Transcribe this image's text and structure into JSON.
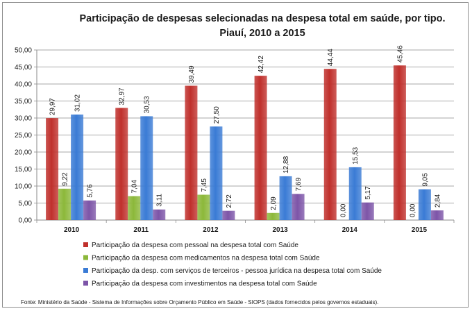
{
  "chart_data": {
    "type": "bar",
    "title": [
      "Participação de despesas selecionadas na despesa total em saúde, por tipo.",
      "Piauí, 2010 a 2015"
    ],
    "categories": [
      "2010",
      "2011",
      "2012",
      "2013",
      "2014",
      "2015"
    ],
    "series": [
      {
        "name": "Participação da despesa com pessoal na despesa total com Saúde",
        "color": "#c0302c",
        "values": [
          29.97,
          32.97,
          39.49,
          42.42,
          44.44,
          45.46
        ],
        "labels": [
          "29,97",
          "32,97",
          "39,49",
          "42,42",
          "44,44",
          "45,46"
        ]
      },
      {
        "name": "Participação da despesa com medicamentos na despesa total com Saúde",
        "color": "#8cb83a",
        "values": [
          9.22,
          7.04,
          7.45,
          2.09,
          0.0,
          0.0
        ],
        "labels": [
          "9,22",
          "7,04",
          "7,45",
          "2,09",
          "",
          ""
        ]
      },
      {
        "name": "Participação da desp. com serviços de terceiros - pessoa jurídica na despesa total com Saúde",
        "color": "#3a7bd5",
        "values": [
          31.02,
          30.53,
          27.5,
          12.88,
          15.53,
          9.05
        ],
        "labels": [
          "31,02",
          "30,53",
          "27,50",
          "12,88",
          "15,53",
          "9,05"
        ],
        "zero_labels": [
          "0,00",
          "0,00"
        ]
      },
      {
        "name": "Participação da despesa com investimentos na despesa total com Saúde",
        "color": "#7d55a8",
        "values": [
          5.76,
          3.11,
          2.72,
          7.69,
          5.17,
          2.84
        ],
        "labels": [
          "5,76",
          "3,11",
          "2,72",
          "7,69",
          "5,17",
          "2,84"
        ]
      }
    ],
    "ylim": [
      0,
      50
    ],
    "yticks": [
      "0,00",
      "5,00",
      "10,00",
      "15,00",
      "20,00",
      "25,00",
      "30,00",
      "35,00",
      "40,00",
      "45,00",
      "50,00"
    ],
    "grid": true,
    "legend_position": "bottom",
    "xlabel": "",
    "ylabel": ""
  },
  "source": "Fonte: Ministério da Saúde - Sistema de Informações sobre Orçamento Público em Saúde - SIOPS (dados fornecidos pelos governos estaduais)."
}
